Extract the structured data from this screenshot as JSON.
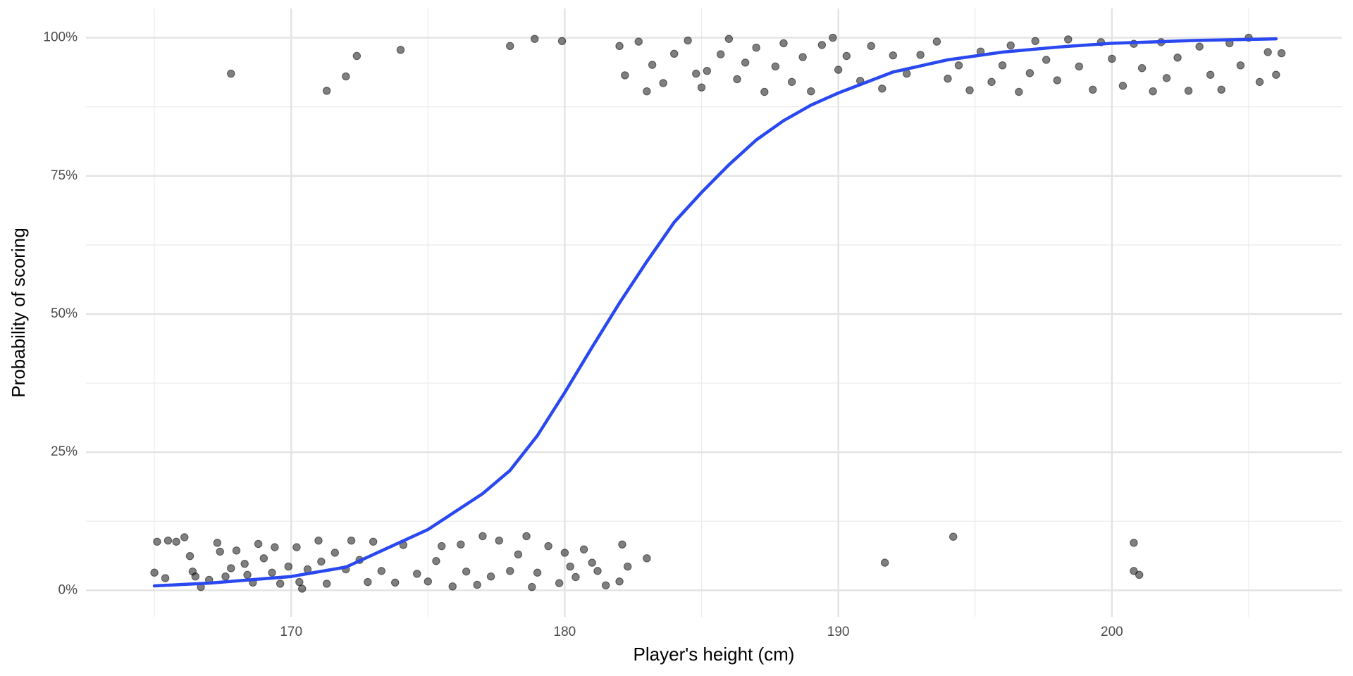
{
  "chart_data": {
    "type": "scatter",
    "x_label": "Player's height (cm)",
    "y_label": "Probability of scoring",
    "xlim": [
      162.5,
      208.4
    ],
    "ylim": [
      -4.8,
      105.3
    ],
    "xticks": [
      170,
      180,
      190,
      200
    ],
    "x_minor_ticks": [
      165,
      175,
      185,
      195,
      205
    ],
    "yticks": [
      {
        "value": 0,
        "label": "0%"
      },
      {
        "value": 25,
        "label": "25%"
      },
      {
        "value": 50,
        "label": "50%"
      },
      {
        "value": 75,
        "label": "75%"
      },
      {
        "value": 100,
        "label": "100%"
      }
    ],
    "y_minor_ticks": [
      12.5,
      37.5,
      62.5,
      87.5
    ],
    "grid": true,
    "points": {
      "color": "rgba(0,0,0,0.5)",
      "x": [
        165,
        165.1,
        165.4,
        165.5,
        165.8,
        166.1,
        166.3,
        166.4,
        166.5,
        166.7,
        167,
        167.3,
        167.4,
        167.6,
        167.8,
        168,
        168.3,
        168.4,
        168.6,
        168.8,
        169,
        169.3,
        169.4,
        169.6,
        169.9,
        170.2,
        170.3,
        170.4,
        170.6,
        171,
        171.1,
        171.3,
        171.6,
        172,
        172.2,
        172.5,
        172.8,
        173,
        173.3,
        173.8,
        174.1,
        174.6,
        175,
        175.3,
        175.5,
        175.9,
        176.2,
        176.4,
        176.8,
        177,
        177.3,
        177.6,
        178,
        178.3,
        178.6,
        178.8,
        179,
        179.4,
        179.8,
        180,
        180.2,
        180.4,
        180.7,
        181,
        181.2,
        181.5,
        182,
        182.1,
        182.3,
        183,
        191.7,
        194.2,
        200.8,
        200.8,
        201,
        167.8,
        171.3,
        172,
        172.4,
        174,
        178,
        178.9,
        179.9,
        182,
        182.2,
        182.7,
        183,
        183.2,
        183.6,
        184,
        184.5,
        184.8,
        185,
        185.2,
        185.7,
        186,
        186.3,
        186.6,
        187,
        187.3,
        187.7,
        188,
        188.3,
        188.7,
        189,
        189.4,
        189.8,
        190,
        190.3,
        190.8,
        191.2,
        191.6,
        192,
        192.5,
        193,
        193.6,
        194,
        194.4,
        194.8,
        195.2,
        195.6,
        196,
        196.3,
        196.6,
        197,
        197.2,
        197.6,
        198,
        198.4,
        198.8,
        199.3,
        199.6,
        200,
        200.4,
        200.8,
        201.1,
        201.5,
        201.8,
        202,
        202.4,
        202.8,
        203.2,
        203.6,
        204,
        204.3,
        204.7,
        205,
        205.4,
        205.7,
        206,
        206.2
      ],
      "values": [
        3.2,
        8.8,
        2.2,
        9,
        8.8,
        9.6,
        6.2,
        3.4,
        2.5,
        0.6,
        1.9,
        8.6,
        7,
        2.5,
        4,
        7.2,
        4.8,
        2.8,
        1.4,
        8.4,
        5.8,
        3.2,
        7.8,
        1.2,
        4.3,
        7.8,
        1.5,
        0.3,
        3.8,
        9,
        5.2,
        1.2,
        6.8,
        3.8,
        9,
        5.5,
        1.5,
        8.8,
        3.5,
        1.4,
        8.2,
        3,
        1.6,
        5.3,
        8,
        0.7,
        8.3,
        3.4,
        1,
        9.8,
        2.5,
        9,
        3.5,
        6.5,
        9.8,
        0.6,
        3.2,
        8,
        1.3,
        6.8,
        4.3,
        2.4,
        7.4,
        5,
        3.5,
        0.9,
        1.6,
        8.3,
        4.3,
        5.8,
        5,
        9.7,
        8.6,
        3.5,
        2.8,
        93.5,
        90.4,
        93,
        96.7,
        97.8,
        98.5,
        99.8,
        99.4,
        98.5,
        93.2,
        99.3,
        90.3,
        95.1,
        91.8,
        97.1,
        99.5,
        93.5,
        91,
        94,
        97,
        99.8,
        92.5,
        95.5,
        98.2,
        90.2,
        94.8,
        99,
        92,
        96.5,
        90.3,
        98.7,
        100,
        94.2,
        96.7,
        92.2,
        98.5,
        90.8,
        96.8,
        93.5,
        96.9,
        99.3,
        92.6,
        95,
        90.5,
        97.5,
        92,
        95,
        98.6,
        90.2,
        93.6,
        99.4,
        96,
        92.3,
        99.7,
        94.8,
        90.6,
        99.2,
        96.2,
        91.3,
        98.9,
        94.5,
        90.3,
        99.2,
        92.7,
        96.4,
        90.4,
        98.4,
        93.3,
        90.6,
        99,
        95,
        100,
        92,
        97.4,
        93.3,
        97.2
      ]
    },
    "curve": {
      "color": "#2a48f0",
      "x": [
        165,
        167,
        170,
        172,
        175,
        177,
        178,
        179,
        180,
        181,
        182,
        183,
        184,
        185,
        186,
        187,
        188,
        189,
        190,
        192,
        194,
        196,
        198,
        200,
        203,
        206
      ],
      "values": [
        0.8,
        1.3,
        2.5,
        4.2,
        11,
        17.5,
        21.7,
        28,
        35.8,
        44,
        52,
        59.5,
        66.6,
        72,
        77,
        81.5,
        85,
        87.8,
        90,
        93.8,
        96,
        97.4,
        98.3,
        99,
        99.5,
        99.8
      ]
    }
  }
}
